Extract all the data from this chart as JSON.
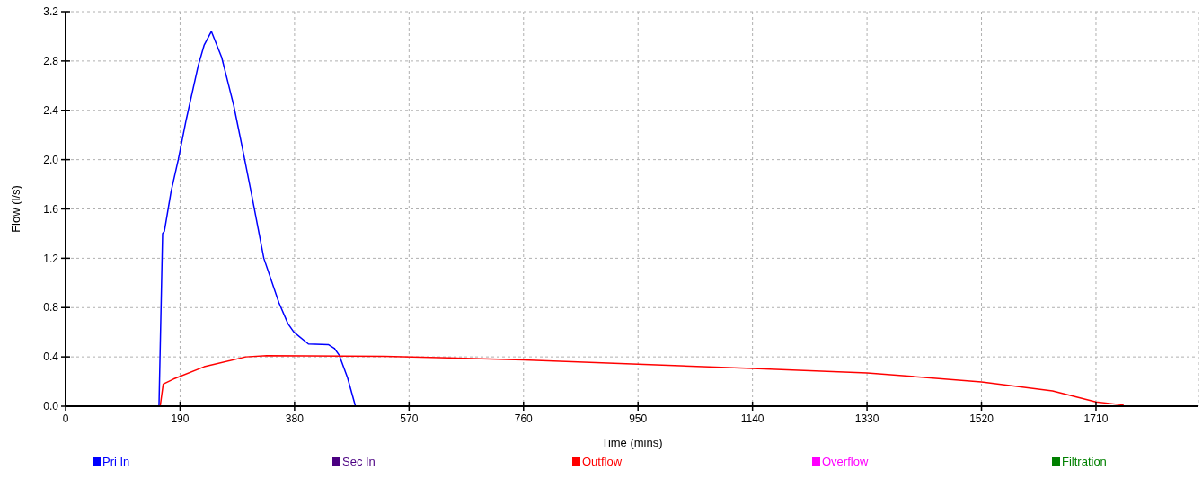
{
  "chart_data": {
    "type": "line",
    "xlabel": "Time (mins)",
    "ylabel": "Flow (l/s)",
    "xlim": [
      0,
      1880
    ],
    "xticks": [
      0,
      190,
      380,
      570,
      760,
      950,
      1140,
      1330,
      1520,
      1710
    ],
    "ylim": [
      0,
      3.2
    ],
    "yticks": [
      {
        "value": 0,
        "label": "0.0"
      },
      {
        "value": 0.4,
        "label": "0.4"
      },
      {
        "value": 0.8,
        "label": "0.8"
      },
      {
        "value": 1.2,
        "label": "1.2"
      },
      {
        "value": 1.6,
        "label": "1.6"
      },
      {
        "value": 2.0,
        "label": "2.0"
      },
      {
        "value": 2.4,
        "label": "2.4"
      },
      {
        "value": 2.8,
        "label": "2.8"
      },
      {
        "value": 3.2,
        "label": "3.2"
      }
    ],
    "grid": true,
    "legend": "bottom",
    "marker": "none",
    "line_style": "solid",
    "series": [
      {
        "name": "Pri In",
        "color": "#0000ff",
        "x": [
          155,
          161,
          164,
          175,
          187,
          200,
          220,
          230,
          242,
          259,
          279,
          294,
          309,
          329,
          354,
          369,
          379,
          403,
          436,
          446,
          454,
          468,
          481
        ],
        "values": [
          0,
          1.4,
          1.42,
          1.74,
          2.0,
          2.32,
          2.76,
          2.93,
          3.04,
          2.83,
          2.44,
          2.08,
          1.71,
          1.2,
          0.84,
          0.67,
          0.6,
          0.505,
          0.5,
          0.47,
          0.415,
          0.23,
          0
        ]
      },
      {
        "name": "Sec In",
        "color": "#4b0082"
      },
      {
        "name": "Outflow",
        "color": "#ff0000",
        "x": [
          157,
          162,
          179,
          230,
          299,
          334,
          529,
          760,
          950,
          1140,
          1330,
          1520,
          1638,
          1710,
          1755
        ],
        "values": [
          0,
          0.18,
          0.22,
          0.32,
          0.4,
          0.41,
          0.405,
          0.376,
          0.34,
          0.306,
          0.27,
          0.197,
          0.124,
          0.034,
          0.01
        ]
      },
      {
        "name": "Overflow",
        "color": "#ff00ff"
      },
      {
        "name": "Filtration",
        "color": "#008000"
      }
    ]
  }
}
